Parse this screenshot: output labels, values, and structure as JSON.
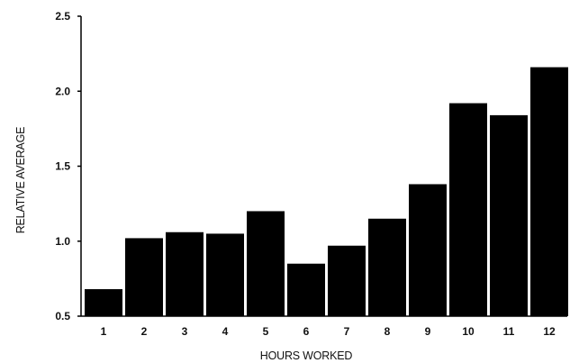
{
  "chart_data": {
    "type": "bar",
    "title": "",
    "xlabel": "HOURS WORKED",
    "ylabel": "RELATIVE AVERAGE",
    "categories": [
      "1",
      "2",
      "3",
      "4",
      "5",
      "6",
      "7",
      "8",
      "9",
      "10",
      "11",
      "12"
    ],
    "values": [
      0.68,
      1.02,
      1.06,
      1.05,
      1.2,
      0.85,
      0.97,
      1.15,
      1.38,
      1.92,
      1.84,
      2.16
    ],
    "ylim": [
      0.5,
      2.5
    ],
    "yticks": [
      "0.5",
      "1.0",
      "1.5",
      "2.0",
      "2.5"
    ],
    "grid": false,
    "legend": "none",
    "bar_color": "#000000"
  }
}
